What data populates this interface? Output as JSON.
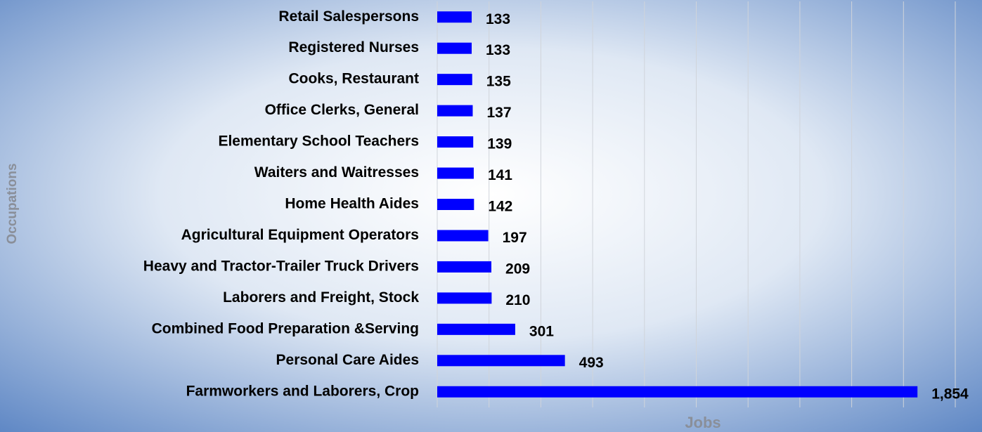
{
  "chart_data": {
    "type": "bar",
    "orientation": "horizontal",
    "xlabel": "Jobs",
    "ylabel": "Occupations",
    "categories": [
      "Retail Salespersons",
      "Registered Nurses",
      "Cooks, Restaurant",
      "Office Clerks, General",
      "Elementary School Teachers",
      "Waiters and Waitresses",
      "Home Health Aides",
      "Agricultural Equipment Operators",
      "Heavy and Tractor-Trailer Truck Drivers",
      "Laborers and Freight, Stock",
      "Combined Food Preparation &Serving",
      "Personal Care Aides",
      "Farmworkers and Laborers, Crop"
    ],
    "values": [
      133,
      133,
      135,
      137,
      139,
      141,
      142,
      197,
      209,
      210,
      301,
      493,
      1854
    ],
    "value_labels": [
      "133",
      "133",
      "135",
      "137",
      "139",
      "141",
      "142",
      "197",
      "209",
      "210",
      "301",
      "493",
      "1,854"
    ],
    "color": "#0000ff",
    "xlim": [
      0,
      2000
    ],
    "xticks": [
      0,
      200,
      400,
      600,
      800,
      1000,
      1200,
      1400,
      1600,
      1800,
      2000
    ],
    "grid": true
  }
}
